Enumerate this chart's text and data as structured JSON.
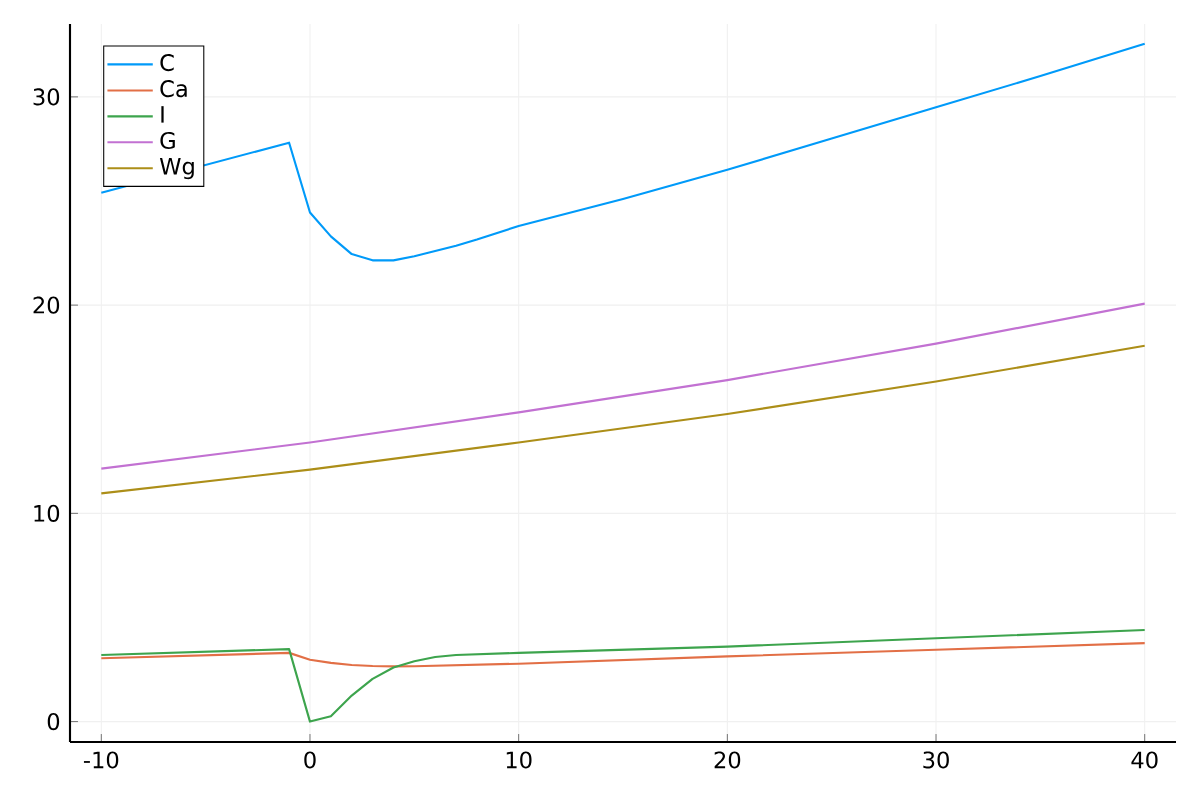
{
  "chart_data": {
    "type": "line",
    "xlim": [
      -11.5,
      41.5
    ],
    "ylim": [
      -0.98,
      33.5
    ],
    "xticks": [
      -10,
      0,
      10,
      20,
      30,
      40
    ],
    "yticks": [
      0,
      10,
      20,
      30
    ],
    "grid": true,
    "legend": "top left",
    "series": [
      {
        "name": "C",
        "color": "#009af9",
        "x": [
          -10,
          -1,
          0,
          1,
          2,
          3,
          4,
          5,
          6,
          7,
          8,
          10,
          15,
          20,
          25,
          30,
          35,
          40
        ],
        "values": [
          25.4,
          27.8,
          24.45,
          23.3,
          22.45,
          22.15,
          22.15,
          22.35,
          22.6,
          22.85,
          23.15,
          23.8,
          25.1,
          26.5,
          28.0,
          29.5,
          31.0,
          32.55
        ]
      },
      {
        "name": "Ca",
        "color": "#e26f46",
        "x": [
          -10,
          -1,
          0,
          1,
          2,
          3,
          4,
          5,
          10,
          20,
          30,
          40
        ],
        "values": [
          3.04,
          3.3,
          2.97,
          2.82,
          2.72,
          2.67,
          2.65,
          2.66,
          2.78,
          3.13,
          3.45,
          3.77
        ]
      },
      {
        "name": "I",
        "color": "#3da44d",
        "x": [
          -10,
          -1,
          0,
          1,
          2,
          3,
          4,
          5,
          6,
          7,
          10,
          20,
          30,
          40
        ],
        "values": [
          3.2,
          3.48,
          0.0,
          0.26,
          1.25,
          2.05,
          2.6,
          2.9,
          3.1,
          3.2,
          3.3,
          3.6,
          4.0,
          4.4
        ]
      },
      {
        "name": "G",
        "color": "#c271d2",
        "x": [
          -10,
          0,
          10,
          20,
          30,
          40
        ],
        "values": [
          12.15,
          13.4,
          14.85,
          16.4,
          18.15,
          20.07
        ]
      },
      {
        "name": "Wg",
        "color": "#ac8e18",
        "x": [
          -10,
          0,
          10,
          20,
          30,
          40
        ],
        "values": [
          10.96,
          12.1,
          13.4,
          14.77,
          16.33,
          18.05
        ]
      }
    ]
  }
}
